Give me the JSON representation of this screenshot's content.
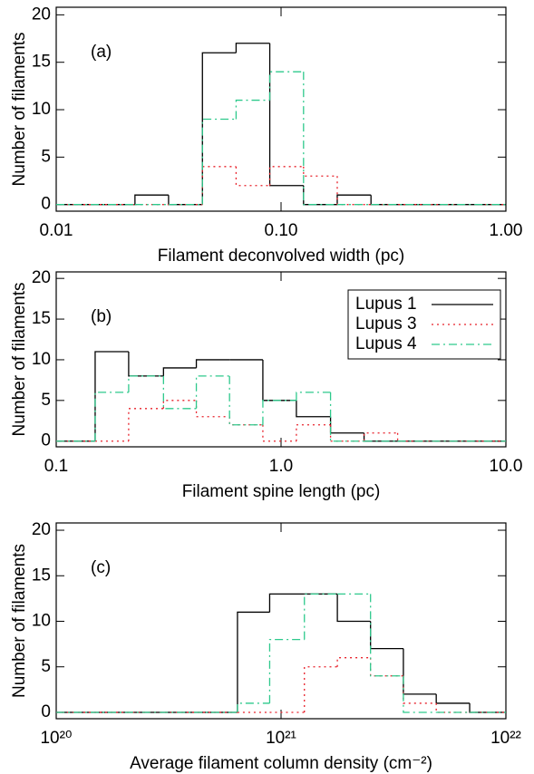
{
  "chart_data": [
    {
      "type": "histogram",
      "panel_label": "(a)",
      "xlabel": "Filament deconvolved width (pc)",
      "ylabel": "Number of filaments",
      "xscale": "log",
      "xlim": [
        0.01,
        1.0
      ],
      "xticks": [
        0.01,
        {
          "value": 0.1,
          "label": "0.10"
        },
        {
          "value": 1.0,
          "label": "1.00"
        }
      ],
      "ylim": [
        -0.7,
        20.8
      ],
      "yticks": [
        0,
        5,
        10,
        15,
        20
      ],
      "bins": [
        0.01,
        0.0224,
        0.0316,
        0.0447,
        0.0631,
        0.0891,
        0.1259,
        0.1778,
        0.2512,
        1.0
      ],
      "series": [
        {
          "color": "#000000",
          "dash": "solid",
          "values": [
            0,
            1,
            0,
            16,
            17,
            2,
            0,
            1,
            0
          ]
        },
        {
          "color": "#e8202a",
          "dash": "dotted",
          "values": [
            0,
            0,
            0,
            4,
            2,
            4,
            3,
            0,
            0
          ]
        },
        {
          "color": "#2ec98c",
          "dash": "dashdot",
          "values": [
            0,
            0,
            0,
            9,
            11,
            14,
            0,
            0,
            0
          ]
        }
      ]
    },
    {
      "type": "histogram",
      "panel_label": "(b)",
      "xlabel": "Filament spine length (pc)",
      "ylabel": "Number of filaments",
      "xscale": "log",
      "xlim": [
        0.1,
        10.0
      ],
      "xticks": [
        0.1,
        {
          "value": 1.0,
          "label": "1.0"
        },
        {
          "value": 10.0,
          "label": "10.0"
        }
      ],
      "ylim": [
        -0.7,
        20.8
      ],
      "yticks": [
        0,
        5,
        10,
        15,
        20
      ],
      "legend": "upper right",
      "bins": [
        0.1,
        0.149,
        0.21,
        0.3,
        0.42,
        0.59,
        0.83,
        1.17,
        1.66,
        2.34,
        3.3,
        10.0
      ],
      "series": [
        {
          "name": "Lupus 1",
          "color": "#000000",
          "dash": "solid",
          "values": [
            0,
            11,
            8,
            9,
            10,
            10,
            5,
            3,
            1,
            0,
            0
          ]
        },
        {
          "name": "Lupus 3",
          "color": "#e8202a",
          "dash": "dotted",
          "values": [
            0,
            0,
            4,
            5,
            3,
            2,
            0,
            2,
            0,
            1,
            0
          ]
        },
        {
          "name": "Lupus 4",
          "color": "#2ec98c",
          "dash": "dashdot",
          "values": [
            0,
            6,
            8,
            4,
            8,
            2,
            5,
            6,
            0,
            0,
            0
          ]
        }
      ]
    },
    {
      "type": "histogram",
      "panel_label": "(c)",
      "xlabel": "Average filament column density (cm⁻²)",
      "ylabel": "Number of filaments",
      "xscale": "log",
      "xlim": [
        1e+20,
        1e+22
      ],
      "xticks": [
        {
          "value": 1e+20,
          "label": "10²⁰"
        },
        {
          "value": 1e+21,
          "label": "10²¹"
        },
        {
          "value": 1e+22,
          "label": "10²²"
        }
      ],
      "ylim": [
        -0.7,
        20.8
      ],
      "yticks": [
        0,
        5,
        10,
        15,
        20
      ],
      "bins": [
        1e+20,
        6.4e+20,
        8.9e+20,
        1.27e+21,
        1.78e+21,
        2.5e+21,
        3.5e+21,
        4.9e+21,
        6.9e+21,
        1e+22
      ],
      "series": [
        {
          "color": "#000000",
          "dash": "solid",
          "values": [
            0,
            11,
            13,
            13,
            10,
            7,
            2,
            1,
            0
          ]
        },
        {
          "color": "#e8202a",
          "dash": "dotted",
          "values": [
            0,
            0,
            0,
            5,
            6,
            4,
            1,
            0,
            0
          ]
        },
        {
          "color": "#2ec98c",
          "dash": "dashdot",
          "values": [
            0,
            1,
            8,
            13,
            13,
            4,
            0,
            0,
            0
          ]
        }
      ]
    }
  ]
}
